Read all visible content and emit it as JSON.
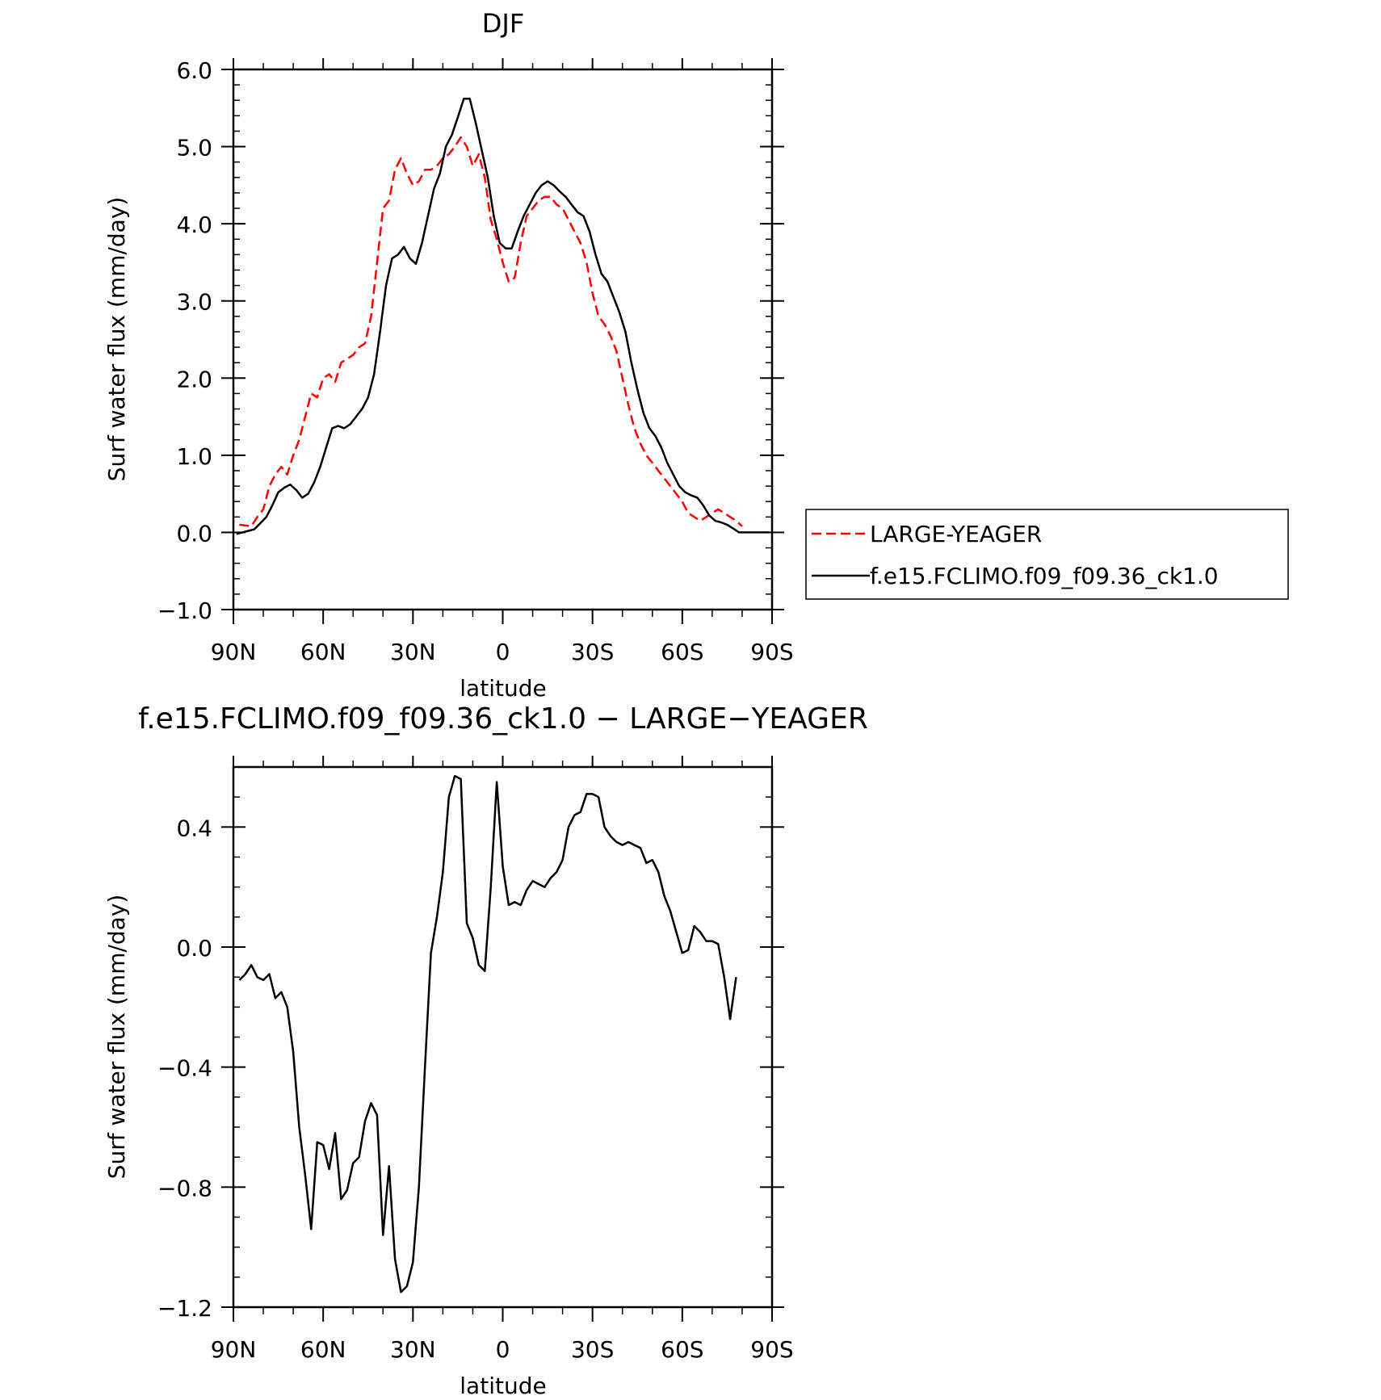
{
  "chart_data": [
    {
      "type": "line",
      "title": "DJF",
      "xlabel": "latitude",
      "ylabel": "Surf water flux (mm/day)",
      "xlim": [
        90,
        -90
      ],
      "xticks": [
        90,
        60,
        30,
        0,
        -30,
        -60,
        -90
      ],
      "xtick_labels": [
        "90N",
        "60N",
        "30N",
        "0",
        "30S",
        "60S",
        "90S"
      ],
      "ylim": [
        -1.0,
        6.0
      ],
      "yticks": [
        -1.0,
        0.0,
        1.0,
        2.0,
        3.0,
        4.0,
        5.0,
        6.0
      ],
      "ytick_labels": [
        "−1.0",
        "0.0",
        "1.0",
        "2.0",
        "3.0",
        "4.0",
        "5.0",
        "6.0"
      ],
      "grid": false,
      "legend": "right",
      "series": [
        {
          "name": "LARGE-YEAGER",
          "color": "#ff0000",
          "style": "dashed",
          "x": [
            88,
            84,
            82,
            80,
            78,
            76,
            74,
            72,
            70,
            68,
            66,
            64,
            62,
            60,
            58,
            56,
            54,
            52,
            50,
            48,
            46,
            44,
            42,
            40,
            38,
            36,
            34,
            32,
            30,
            28,
            26,
            24,
            22,
            20,
            18,
            16,
            14,
            12,
            10,
            8,
            6,
            4,
            2,
            0,
            -2,
            -4,
            -6,
            -8,
            -10,
            -12,
            -14,
            -16,
            -18,
            -20,
            -22,
            -24,
            -26,
            -28,
            -30,
            -32,
            -34,
            -36,
            -38,
            -40,
            -42,
            -44,
            -46,
            -48,
            -50,
            -52,
            -54,
            -56,
            -58,
            -60,
            -62,
            -64,
            -66,
            -68,
            -70,
            -72,
            -74,
            -76,
            -78,
            -80
          ],
          "y": [
            0.1,
            0.08,
            0.2,
            0.3,
            0.6,
            0.75,
            0.85,
            0.75,
            1.0,
            1.2,
            1.5,
            1.8,
            1.75,
            2.0,
            2.05,
            1.95,
            2.2,
            2.25,
            2.3,
            2.4,
            2.45,
            2.8,
            3.5,
            4.2,
            4.3,
            4.7,
            4.85,
            4.65,
            4.5,
            4.55,
            4.7,
            4.7,
            4.75,
            4.85,
            4.9,
            5.0,
            5.12,
            5.0,
            4.75,
            4.9,
            4.6,
            4.05,
            3.8,
            3.5,
            3.25,
            3.3,
            3.75,
            4.1,
            4.2,
            4.3,
            4.35,
            4.35,
            4.25,
            4.2,
            4.05,
            3.9,
            3.75,
            3.5,
            3.1,
            2.8,
            2.7,
            2.55,
            2.35,
            2.0,
            1.65,
            1.35,
            1.15,
            1.0,
            0.9,
            0.8,
            0.7,
            0.6,
            0.5,
            0.4,
            0.25,
            0.2,
            0.15,
            0.2,
            0.25,
            0.3,
            0.25,
            0.2,
            0.15,
            0.08
          ]
        },
        {
          "name": "f.e15.FCLIMO.f09_f09.36_ck1.0",
          "color": "#000000",
          "style": "solid",
          "x": [
            89,
            87,
            85,
            83,
            81,
            79,
            77,
            75,
            73,
            71,
            69,
            67,
            65,
            63,
            61,
            59,
            57,
            55,
            53,
            51,
            49,
            47,
            45,
            43,
            41,
            39,
            37,
            35,
            33,
            31,
            29,
            27,
            25,
            23,
            21,
            19,
            17,
            15,
            13,
            11,
            9,
            7,
            5,
            3,
            1,
            -1,
            -3,
            -5,
            -7,
            -9,
            -11,
            -13,
            -15,
            -17,
            -19,
            -21,
            -23,
            -25,
            -27,
            -29,
            -31,
            -33,
            -35,
            -37,
            -39,
            -41,
            -43,
            -45,
            -47,
            -49,
            -51,
            -53,
            -55,
            -57,
            -59,
            -61,
            -63,
            -65,
            -67,
            -69,
            -71,
            -73,
            -75,
            -77,
            -79,
            -81,
            -83,
            -85,
            -87,
            -89
          ],
          "y": [
            -0.02,
            0.0,
            0.02,
            0.04,
            0.12,
            0.2,
            0.35,
            0.52,
            0.58,
            0.62,
            0.55,
            0.45,
            0.5,
            0.65,
            0.85,
            1.1,
            1.35,
            1.38,
            1.35,
            1.4,
            1.5,
            1.6,
            1.75,
            2.05,
            2.6,
            3.2,
            3.55,
            3.6,
            3.7,
            3.55,
            3.48,
            3.75,
            4.1,
            4.45,
            4.65,
            5.0,
            5.15,
            5.38,
            5.62,
            5.62,
            5.3,
            4.95,
            4.6,
            4.1,
            3.75,
            3.68,
            3.68,
            3.9,
            4.1,
            4.25,
            4.4,
            4.5,
            4.55,
            4.5,
            4.42,
            4.35,
            4.25,
            4.15,
            4.1,
            3.9,
            3.6,
            3.35,
            3.25,
            3.05,
            2.85,
            2.6,
            2.2,
            1.85,
            1.55,
            1.35,
            1.25,
            1.1,
            0.9,
            0.75,
            0.6,
            0.52,
            0.48,
            0.45,
            0.35,
            0.22,
            0.15,
            0.13,
            0.1,
            0.05,
            0.0,
            0.0,
            0.0,
            0.0,
            0.0,
            0.0
          ]
        }
      ]
    },
    {
      "type": "line",
      "title": "f.e15.FCLIMO.f09_f09.36_ck1.0 − LARGE−YEAGER",
      "xlabel": "latitude",
      "ylabel": "Surf water flux (mm/day)",
      "xlim": [
        90,
        -90
      ],
      "xticks": [
        90,
        60,
        30,
        0,
        -30,
        -60,
        -90
      ],
      "xtick_labels": [
        "90N",
        "60N",
        "30N",
        "0",
        "30S",
        "60S",
        "90S"
      ],
      "ylim": [
        -1.2,
        0.6
      ],
      "yticks": [
        -1.2,
        -0.8,
        -0.4,
        0.0,
        0.4
      ],
      "ytick_labels": [
        "−1.2",
        "−0.8",
        "−0.4",
        "0.0",
        "0.4"
      ],
      "grid": false,
      "series": [
        {
          "color": "#000000",
          "style": "solid",
          "x": [
            88,
            86,
            84,
            82,
            80,
            78,
            76,
            74,
            72,
            70,
            68,
            66,
            64,
            62,
            60,
            58,
            56,
            54,
            52,
            50,
            48,
            46,
            44,
            42,
            40,
            38,
            36,
            34,
            32,
            30,
            28,
            26,
            24,
            22,
            20,
            18,
            16,
            14,
            12,
            10,
            8,
            6,
            4,
            2,
            0,
            -2,
            -4,
            -6,
            -8,
            -10,
            -12,
            -14,
            -16,
            -18,
            -20,
            -22,
            -24,
            -26,
            -28,
            -30,
            -32,
            -34,
            -36,
            -38,
            -40,
            -42,
            -44,
            -46,
            -48,
            -50,
            -52,
            -54,
            -56,
            -58,
            -60,
            -62,
            -64,
            -66,
            -68,
            -70,
            -72,
            -74,
            -76,
            -78
          ],
          "y": [
            -0.11,
            -0.09,
            -0.06,
            -0.1,
            -0.11,
            -0.09,
            -0.17,
            -0.15,
            -0.2,
            -0.35,
            -0.6,
            -0.76,
            -0.94,
            -0.65,
            -0.66,
            -0.74,
            -0.62,
            -0.84,
            -0.81,
            -0.72,
            -0.7,
            -0.58,
            -0.52,
            -0.56,
            -0.96,
            -0.73,
            -1.04,
            -1.15,
            -1.13,
            -1.05,
            -0.8,
            -0.4,
            -0.02,
            0.1,
            0.25,
            0.5,
            0.57,
            0.56,
            0.08,
            0.03,
            -0.06,
            -0.08,
            0.2,
            0.55,
            0.27,
            0.14,
            0.15,
            0.14,
            0.19,
            0.22,
            0.21,
            0.2,
            0.23,
            0.25,
            0.29,
            0.4,
            0.44,
            0.45,
            0.51,
            0.51,
            0.5,
            0.4,
            0.37,
            0.35,
            0.34,
            0.35,
            0.34,
            0.33,
            0.28,
            0.29,
            0.25,
            0.17,
            0.12,
            0.05,
            -0.02,
            -0.01,
            0.07,
            0.05,
            0.02,
            0.02,
            0.01,
            -0.1,
            -0.24,
            -0.1
          ]
        }
      ]
    }
  ]
}
